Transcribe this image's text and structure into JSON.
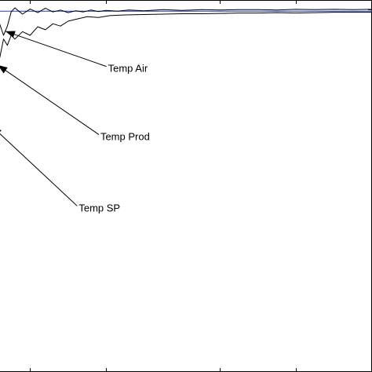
{
  "chart_data": {
    "type": "line",
    "title": "",
    "xlabel": "",
    "ylabel": "",
    "grid": false,
    "xlim": [
      0,
      100
    ],
    "ylim": [
      0,
      100
    ],
    "series": [
      {
        "color": "#1f3fbf",
        "x": [
          0,
          100
        ],
        "y": [
          97.0,
          97.0
        ]
      },
      {
        "color": "#000000",
        "x": [
          0,
          1,
          2,
          3,
          4,
          5,
          6,
          7,
          8,
          10,
          12,
          14,
          16,
          18,
          20,
          22,
          24,
          26,
          28,
          30,
          33,
          36,
          40,
          45,
          50,
          55,
          60,
          65,
          70,
          75,
          80,
          85,
          90,
          95,
          100
        ],
        "y": [
          96.0,
          97.5,
          93.5,
          90.5,
          93.0,
          96.8,
          97.9,
          97.0,
          96.2,
          97.6,
          96.6,
          97.8,
          96.8,
          97.3,
          96.6,
          97.1,
          96.8,
          97.3,
          96.9,
          97.2,
          97.0,
          97.3,
          97.1,
          97.4,
          97.2,
          97.4,
          97.3,
          97.4,
          97.4,
          97.3,
          97.5,
          97.4,
          97.5,
          97.4,
          97.5
        ]
      },
      {
        "color": "#000000",
        "x": [
          0,
          1,
          2,
          3,
          4,
          5,
          6,
          8,
          10,
          12,
          14,
          16,
          18,
          20,
          22,
          25,
          28,
          31,
          35,
          40,
          45,
          50,
          55,
          60,
          65,
          70,
          75,
          80,
          85,
          90,
          95,
          100
        ],
        "y": [
          90.0,
          85.5,
          84.5,
          89.5,
          87.8,
          90.5,
          89.5,
          91.5,
          90.5,
          92.8,
          92.0,
          93.6,
          93.0,
          94.3,
          94.8,
          95.5,
          95.3,
          95.8,
          96.0,
          96.1,
          96.2,
          96.3,
          96.3,
          96.4,
          96.5,
          96.5,
          96.6,
          96.5,
          96.6,
          96.7,
          96.7,
          96.7
        ]
      }
    ],
    "annotations": [
      {
        "text": "Temp Air",
        "point": [
          3.5,
          91.6
        ],
        "text_pos": [
          30.5,
          81.5
        ]
      },
      {
        "text": "Temp Prod",
        "point": [
          1.5,
          82.5
        ],
        "text_pos": [
          28.5,
          63.2
        ]
      },
      {
        "text": "Temp SP",
        "point": [
          0.0,
          66.0
        ],
        "text_pos": [
          22.8,
          44.0
        ]
      }
    ]
  }
}
